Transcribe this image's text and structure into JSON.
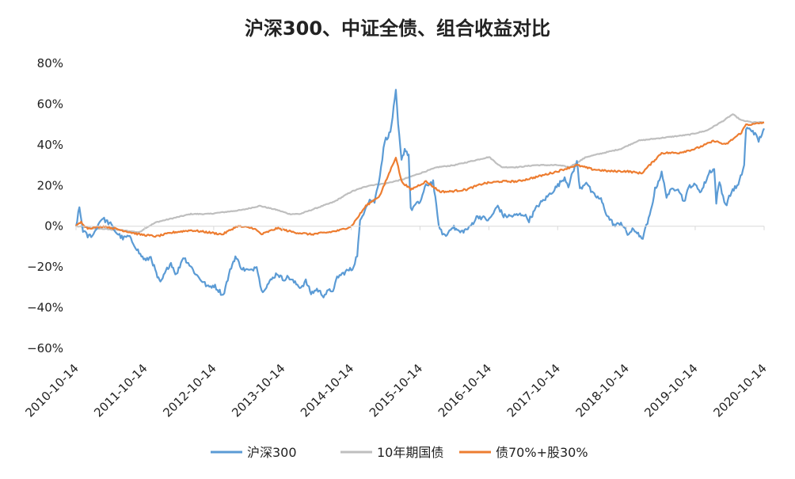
{
  "chart_data": {
    "type": "line",
    "title": "沪深300、中证全债、组合收益对比",
    "xlabel": "",
    "ylabel": "",
    "y_unit": "%",
    "ylim": [
      -60,
      80
    ],
    "yticks": [
      {
        "value": 80,
        "label": "80%"
      },
      {
        "value": 60,
        "label": "60%"
      },
      {
        "value": 40,
        "label": "40%"
      },
      {
        "value": 20,
        "label": "20%"
      },
      {
        "value": 0,
        "label": "0%"
      },
      {
        "value": -20,
        "label": "−20%"
      },
      {
        "value": -40,
        "label": "−40%"
      },
      {
        "value": -60,
        "label": "−60%"
      }
    ],
    "xlim": [
      "2010-10-14",
      "2020-10-14"
    ],
    "xticks": [
      "2010-10-14",
      "2011-10-14",
      "2012-10-14",
      "2013-10-14",
      "2014-10-14",
      "2015-10-14",
      "2016-10-14",
      "2017-10-14",
      "2018-10-14",
      "2019-10-14",
      "2020-10-14"
    ],
    "grid": false,
    "legend_position": "bottom",
    "series": [
      {
        "name": "沪深300",
        "color": "#5b9bd5",
        "points": [
          [
            "2010-10-14",
            0
          ],
          [
            "2010-11-01",
            9
          ],
          [
            "2010-11-20",
            -2
          ],
          [
            "2010-12-15",
            -5
          ],
          [
            "2011-01-15",
            -4
          ],
          [
            "2011-02-15",
            2
          ],
          [
            "2011-03-01",
            4
          ],
          [
            "2011-04-15",
            1
          ],
          [
            "2011-05-15",
            -3
          ],
          [
            "2011-06-20",
            -6
          ],
          [
            "2011-07-20",
            -5
          ],
          [
            "2011-08-20",
            -9
          ],
          [
            "2011-09-20",
            -14
          ],
          [
            "2011-10-20",
            -17
          ],
          [
            "2011-11-15",
            -15
          ],
          [
            "2011-12-20",
            -25
          ],
          [
            "2012-01-05",
            -28
          ],
          [
            "2012-02-15",
            -20
          ],
          [
            "2012-03-01",
            -18
          ],
          [
            "2012-03-30",
            -24
          ],
          [
            "2012-05-05",
            -15
          ],
          [
            "2012-06-01",
            -18
          ],
          [
            "2012-07-15",
            -24
          ],
          [
            "2012-08-15",
            -27
          ],
          [
            "2012-09-15",
            -30
          ],
          [
            "2012-10-15",
            -29
          ],
          [
            "2012-11-15",
            -32
          ],
          [
            "2012-12-03",
            -34
          ],
          [
            "2013-01-15",
            -20
          ],
          [
            "2013-02-06",
            -15
          ],
          [
            "2013-03-15",
            -21
          ],
          [
            "2013-05-01",
            -22
          ],
          [
            "2013-05-30",
            -19
          ],
          [
            "2013-06-25",
            -32
          ],
          [
            "2013-07-15",
            -30
          ],
          [
            "2013-09-15",
            -23
          ],
          [
            "2013-10-15",
            -26
          ],
          [
            "2013-11-15",
            -25
          ],
          [
            "2013-12-20",
            -28
          ],
          [
            "2014-01-20",
            -30
          ],
          [
            "2014-02-15",
            -27
          ],
          [
            "2014-03-15",
            -33
          ],
          [
            "2014-04-15",
            -31
          ],
          [
            "2014-05-20",
            -34
          ],
          [
            "2014-06-15",
            -32
          ],
          [
            "2014-07-15",
            -31
          ],
          [
            "2014-07-31",
            -25
          ],
          [
            "2014-08-20",
            -24
          ],
          [
            "2014-09-20",
            -22
          ],
          [
            "2014-10-20",
            -21
          ],
          [
            "2014-11-15",
            -14
          ],
          [
            "2014-11-30",
            2
          ],
          [
            "2014-12-31",
            10
          ],
          [
            "2015-01-20",
            13
          ],
          [
            "2015-02-15",
            12
          ],
          [
            "2015-03-15",
            25
          ],
          [
            "2015-04-10",
            42
          ],
          [
            "2015-05-10",
            46
          ],
          [
            "2015-06-08",
            66
          ],
          [
            "2015-06-20",
            50
          ],
          [
            "2015-07-08",
            32
          ],
          [
            "2015-07-25",
            38
          ],
          [
            "2015-08-15",
            35
          ],
          [
            "2015-08-26",
            8
          ],
          [
            "2015-09-15",
            10
          ],
          [
            "2015-10-15",
            12
          ],
          [
            "2015-11-15",
            20
          ],
          [
            "2015-12-23",
            22
          ],
          [
            "2016-01-15",
            5
          ],
          [
            "2016-01-28",
            -2
          ],
          [
            "2016-02-29",
            -5
          ],
          [
            "2016-03-31",
            0
          ],
          [
            "2016-05-15",
            -3
          ],
          [
            "2016-06-30",
            -1
          ],
          [
            "2016-08-15",
            5
          ],
          [
            "2016-10-15",
            3
          ],
          [
            "2016-11-30",
            10
          ],
          [
            "2016-12-31",
            5
          ],
          [
            "2017-02-15",
            5
          ],
          [
            "2017-04-15",
            6
          ],
          [
            "2017-05-15",
            3
          ],
          [
            "2017-06-30",
            10
          ],
          [
            "2017-08-15",
            14
          ],
          [
            "2017-10-15",
            20
          ],
          [
            "2017-11-20",
            24
          ],
          [
            "2017-12-10",
            20
          ],
          [
            "2018-01-24",
            32
          ],
          [
            "2018-02-09",
            18
          ],
          [
            "2018-03-15",
            22
          ],
          [
            "2018-04-15",
            16
          ],
          [
            "2018-06-01",
            13
          ],
          [
            "2018-07-05",
            5
          ],
          [
            "2018-08-15",
            0
          ],
          [
            "2018-09-15",
            2
          ],
          [
            "2018-10-20",
            -4
          ],
          [
            "2018-11-15",
            -2
          ],
          [
            "2018-12-15",
            -3
          ],
          [
            "2019-01-03",
            -7
          ],
          [
            "2019-02-15",
            5
          ],
          [
            "2019-03-15",
            18
          ],
          [
            "2019-04-19",
            26
          ],
          [
            "2019-05-15",
            15
          ],
          [
            "2019-06-15",
            18
          ],
          [
            "2019-07-15",
            19
          ],
          [
            "2019-08-15",
            12
          ],
          [
            "2019-09-15",
            20
          ],
          [
            "2019-10-15",
            20
          ],
          [
            "2019-11-15",
            17
          ],
          [
            "2019-12-31",
            27
          ],
          [
            "2020-01-23",
            28
          ],
          [
            "2020-02-03",
            12
          ],
          [
            "2020-02-20",
            22
          ],
          [
            "2020-03-23",
            10
          ],
          [
            "2020-04-30",
            18
          ],
          [
            "2020-05-30",
            20
          ],
          [
            "2020-06-30",
            30
          ],
          [
            "2020-07-10",
            48
          ],
          [
            "2020-08-15",
            47
          ],
          [
            "2020-09-15",
            42
          ],
          [
            "2020-10-14",
            48
          ]
        ]
      },
      {
        "name": "10年期国债",
        "color": "#bfbfbf",
        "points": [
          [
            "2010-10-14",
            0
          ],
          [
            "2011-01-15",
            -1
          ],
          [
            "2011-06-15",
            -2
          ],
          [
            "2011-09-15",
            -3
          ],
          [
            "2011-10-15",
            -1
          ],
          [
            "2011-12-15",
            2
          ],
          [
            "2012-03-15",
            4
          ],
          [
            "2012-06-15",
            6
          ],
          [
            "2012-09-15",
            6
          ],
          [
            "2012-12-15",
            7
          ],
          [
            "2013-03-15",
            8
          ],
          [
            "2013-06-15",
            10
          ],
          [
            "2013-09-15",
            8
          ],
          [
            "2013-11-20",
            6
          ],
          [
            "2014-01-15",
            6
          ],
          [
            "2014-04-15",
            9
          ],
          [
            "2014-07-15",
            12
          ],
          [
            "2014-10-15",
            17
          ],
          [
            "2015-01-15",
            20
          ],
          [
            "2015-04-15",
            21
          ],
          [
            "2015-07-15",
            23
          ],
          [
            "2015-10-15",
            26
          ],
          [
            "2016-01-15",
            29
          ],
          [
            "2016-04-15",
            30
          ],
          [
            "2016-07-15",
            32
          ],
          [
            "2016-10-15",
            34
          ],
          [
            "2016-12-20",
            29
          ],
          [
            "2017-03-15",
            29
          ],
          [
            "2017-06-15",
            30
          ],
          [
            "2017-10-15",
            30
          ],
          [
            "2017-12-15",
            29
          ],
          [
            "2018-03-15",
            34
          ],
          [
            "2018-06-15",
            36
          ],
          [
            "2018-09-15",
            38
          ],
          [
            "2018-12-15",
            42
          ],
          [
            "2019-03-15",
            43
          ],
          [
            "2019-06-15",
            44
          ],
          [
            "2019-09-15",
            45
          ],
          [
            "2019-12-15",
            47
          ],
          [
            "2020-03-15",
            52
          ],
          [
            "2020-04-30",
            55
          ],
          [
            "2020-06-15",
            52
          ],
          [
            "2020-08-15",
            51
          ],
          [
            "2020-10-14",
            51
          ]
        ]
      },
      {
        "name": "债70%+股30%",
        "color": "#ed7d31",
        "points": [
          [
            "2010-10-14",
            0
          ],
          [
            "2010-11-10",
            2
          ],
          [
            "2010-12-15",
            -1
          ],
          [
            "2011-03-15",
            0
          ],
          [
            "2011-06-15",
            -2
          ],
          [
            "2011-09-15",
            -4
          ],
          [
            "2011-12-15",
            -5
          ],
          [
            "2012-03-15",
            -3
          ],
          [
            "2012-06-15",
            -2
          ],
          [
            "2012-09-15",
            -3
          ],
          [
            "2012-11-30",
            -4
          ],
          [
            "2013-02-15",
            0
          ],
          [
            "2013-05-15",
            -1
          ],
          [
            "2013-06-25",
            -4
          ],
          [
            "2013-09-15",
            -1
          ],
          [
            "2013-12-15",
            -3
          ],
          [
            "2014-03-15",
            -4
          ],
          [
            "2014-06-15",
            -3
          ],
          [
            "2014-08-15",
            -2
          ],
          [
            "2014-10-15",
            0
          ],
          [
            "2014-12-31",
            10
          ],
          [
            "2015-03-15",
            15
          ],
          [
            "2015-06-08",
            34
          ],
          [
            "2015-07-08",
            22
          ],
          [
            "2015-08-26",
            18
          ],
          [
            "2015-11-15",
            22
          ],
          [
            "2016-01-28",
            17
          ],
          [
            "2016-03-15",
            17
          ],
          [
            "2016-06-15",
            18
          ],
          [
            "2016-09-15",
            21
          ],
          [
            "2016-12-15",
            22
          ],
          [
            "2017-03-15",
            22
          ],
          [
            "2017-06-15",
            24
          ],
          [
            "2017-10-15",
            27
          ],
          [
            "2018-01-24",
            30
          ],
          [
            "2018-04-15",
            28
          ],
          [
            "2018-07-15",
            27
          ],
          [
            "2018-10-15",
            27
          ],
          [
            "2019-01-03",
            26
          ],
          [
            "2019-04-19",
            36
          ],
          [
            "2019-07-15",
            36
          ],
          [
            "2019-10-15",
            38
          ],
          [
            "2019-12-31",
            41
          ],
          [
            "2020-01-23",
            42
          ],
          [
            "2020-03-23",
            40
          ],
          [
            "2020-06-15",
            46
          ],
          [
            "2020-07-10",
            50
          ],
          [
            "2020-08-15",
            50
          ],
          [
            "2020-10-14",
            51
          ]
        ]
      }
    ]
  }
}
